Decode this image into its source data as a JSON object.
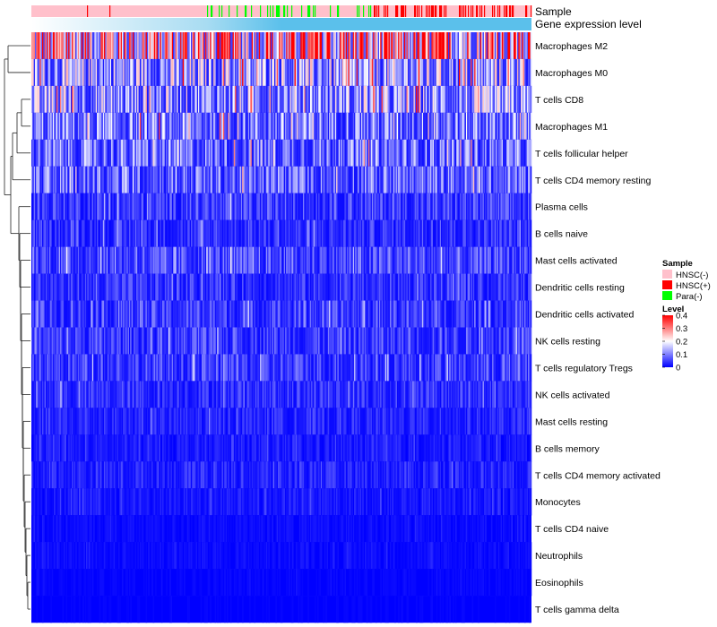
{
  "chart_data": {
    "type": "heatmap",
    "title": "",
    "annotation_tracks": [
      {
        "label": "Sample",
        "kind": "categorical"
      },
      {
        "label": "Gene expression level",
        "kind": "continuous"
      }
    ],
    "rows": [
      {
        "name": "Macrophages M2",
        "mean": 0.26
      },
      {
        "name": "Macrophages M0",
        "mean": 0.13
      },
      {
        "name": "T cells CD8",
        "mean": 0.12
      },
      {
        "name": "Macrophages M1",
        "mean": 0.1
      },
      {
        "name": "T cells follicular helper",
        "mean": 0.09
      },
      {
        "name": "T cells CD4 memory resting",
        "mean": 0.08
      },
      {
        "name": "Plasma cells",
        "mean": 0.05
      },
      {
        "name": "B cells naive",
        "mean": 0.04
      },
      {
        "name": "Mast cells activated",
        "mean": 0.06
      },
      {
        "name": "Dendritic cells resting",
        "mean": 0.04
      },
      {
        "name": "Dendritic cells activated",
        "mean": 0.05
      },
      {
        "name": "NK cells resting",
        "mean": 0.05
      },
      {
        "name": "T cells regulatory  Tregs",
        "mean": 0.05
      },
      {
        "name": "NK cells activated",
        "mean": 0.04
      },
      {
        "name": "Mast cells resting",
        "mean": 0.03
      },
      {
        "name": "B cells memory",
        "mean": 0.02
      },
      {
        "name": "T cells CD4 memory activated",
        "mean": 0.03
      },
      {
        "name": "Monocytes",
        "mean": 0.02
      },
      {
        "name": "T cells CD4 naive",
        "mean": 0.01
      },
      {
        "name": "Neutrophils",
        "mean": 0.01
      },
      {
        "name": "Eosinophils",
        "mean": 0.005
      },
      {
        "name": "T cells gamma delta",
        "mean": 0.003
      }
    ],
    "sample_legend": {
      "title": "Sample",
      "entries": [
        {
          "label": "HNSC(-)",
          "color": "#ffc0cb"
        },
        {
          "label": "HNSC(+)",
          "color": "#ff0000"
        },
        {
          "label": "Para(-)",
          "color": "#00ff00"
        }
      ]
    },
    "level_legend": {
      "title": "Level",
      "ticks": [
        0.4,
        0.3,
        0.2,
        0.1,
        0
      ],
      "tick_labels": [
        "0.4",
        "0.3",
        "0.2",
        "0.1",
        "0"
      ],
      "range": [
        0,
        0.4
      ],
      "colors": [
        "#0000ff",
        "#ffffff",
        "#ff0000"
      ]
    },
    "gene_expression_colors": [
      "#ffffff",
      "#5bc0eb"
    ]
  }
}
